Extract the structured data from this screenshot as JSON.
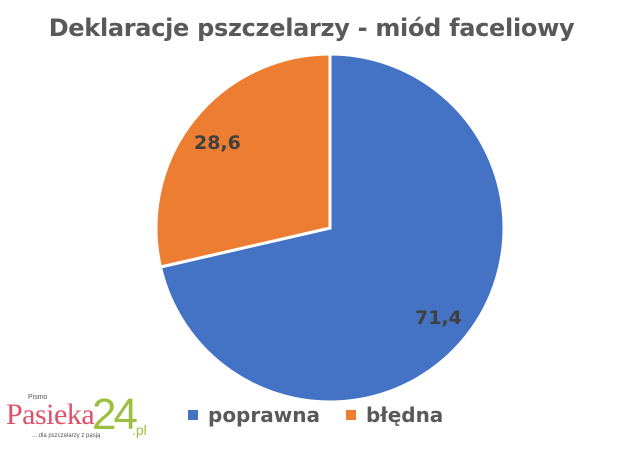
{
  "chart_data": {
    "type": "pie",
    "title": "Deklaracje pszczelarzy - miód faceliowy",
    "categories": [
      "poprawna",
      "błędna"
    ],
    "values": [
      71.4,
      28.6
    ],
    "data_labels": [
      "71,4",
      "28,6"
    ],
    "colors": [
      "#4472C4",
      "#ED7D31"
    ],
    "start_angle": "12 o'clock, clockwise",
    "legend_position": "bottom"
  },
  "title": "Deklaracje pszczelarzy - miód faceliowy",
  "labels": {
    "blue": "71,4",
    "orange": "28,6"
  },
  "legend": [
    {
      "label": "poprawna",
      "color": "#4472C4"
    },
    {
      "label": "błędna",
      "color": "#ED7D31"
    }
  ],
  "logo": {
    "pismo": "Pismo",
    "name": "Pasieka",
    "number": "24",
    "domain": ".pl",
    "tagline": "... dla pszczelarzy z pasją"
  }
}
